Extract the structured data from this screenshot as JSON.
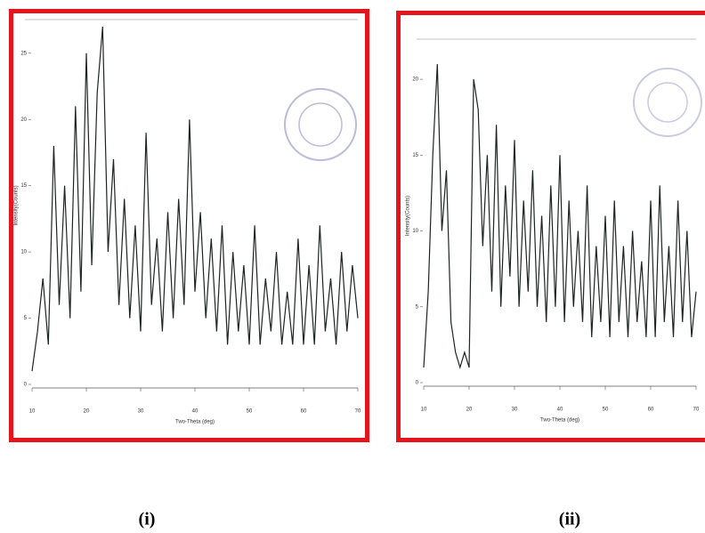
{
  "chart_data": [
    {
      "type": "line",
      "caption": "(i)",
      "x_label": "Two-Theta (deg)",
      "y_label": "Intensity(Counts)",
      "x": [
        10,
        11,
        12,
        13,
        14,
        15,
        16,
        17,
        18,
        19,
        20,
        21,
        22,
        23,
        24,
        25,
        26,
        27,
        28,
        29,
        30,
        31,
        32,
        33,
        34,
        35,
        36,
        37,
        38,
        39,
        40,
        41,
        42,
        43,
        44,
        45,
        46,
        47,
        48,
        49,
        50,
        51,
        52,
        53,
        54,
        55,
        56,
        57,
        58,
        59,
        60,
        61,
        62,
        63,
        64,
        65,
        66,
        67,
        68,
        69,
        70
      ],
      "series": [
        {
          "color": "#1e2422",
          "values": [
            1,
            4,
            8,
            3,
            18,
            6,
            15,
            5,
            21,
            7,
            25,
            9,
            22,
            27,
            10,
            17,
            6,
            14,
            5,
            12,
            4,
            19,
            6,
            11,
            4,
            13,
            5,
            14,
            6,
            20,
            7,
            13,
            5,
            11,
            4,
            12,
            3,
            10,
            4,
            9,
            3,
            12,
            3,
            8,
            4,
            10,
            3,
            7,
            3,
            11,
            3,
            9,
            3,
            12,
            4,
            8,
            3,
            10,
            4,
            9,
            5
          ]
        }
      ],
      "xlim": [
        10,
        70
      ],
      "xticks": [
        10,
        20,
        30,
        40,
        50,
        60,
        70
      ],
      "ylim": [
        0,
        27
      ],
      "yticks": [
        0,
        5,
        10,
        15,
        20,
        25
      ]
    },
    {
      "type": "line",
      "caption": "(ii)",
      "x_label": "Two-Theta (deg)",
      "y_label": "Intensity(Counts)",
      "x": [
        10,
        11,
        12,
        13,
        14,
        15,
        16,
        17,
        18,
        19,
        20,
        21,
        22,
        23,
        24,
        25,
        26,
        27,
        28,
        29,
        30,
        31,
        32,
        33,
        34,
        35,
        36,
        37,
        38,
        39,
        40,
        41,
        42,
        43,
        44,
        45,
        46,
        47,
        48,
        49,
        50,
        51,
        52,
        53,
        54,
        55,
        56,
        57,
        58,
        59,
        60,
        61,
        62,
        63,
        64,
        65,
        66,
        67,
        68,
        69,
        70
      ],
      "series": [
        {
          "color": "#1e2422",
          "values": [
            1,
            6,
            15,
            21,
            10,
            14,
            4,
            2,
            1,
            2,
            1,
            20,
            18,
            9,
            15,
            6,
            17,
            5,
            13,
            7,
            16,
            5,
            12,
            6,
            14,
            5,
            11,
            4,
            13,
            5,
            15,
            4,
            12,
            5,
            10,
            4,
            13,
            3,
            9,
            4,
            11,
            3,
            12,
            4,
            9,
            3,
            10,
            4,
            8,
            3,
            12,
            3,
            13,
            4,
            9,
            3,
            12,
            4,
            10,
            3,
            6
          ]
        }
      ],
      "xlim": [
        10,
        70
      ],
      "xticks": [
        10,
        20,
        30,
        40,
        50,
        60,
        70
      ],
      "ylim": [
        0,
        22
      ],
      "yticks": [
        0,
        5,
        10,
        15,
        20
      ]
    }
  ]
}
